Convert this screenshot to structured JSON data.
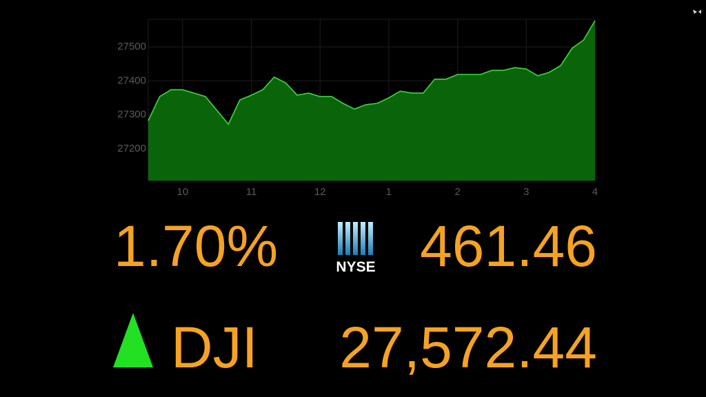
{
  "chart_data": {
    "type": "area",
    "x": [
      9.5,
      9.667,
      9.833,
      10,
      10.167,
      10.333,
      10.5,
      10.667,
      10.833,
      11,
      11.167,
      11.333,
      11.5,
      11.667,
      11.833,
      12,
      12.167,
      12.333,
      12.5,
      12.667,
      12.833,
      13,
      13.167,
      13.333,
      13.5,
      13.667,
      13.833,
      14,
      14.167,
      14.333,
      14.5,
      14.667,
      14.833,
      15,
      15.167,
      15.333,
      15.5,
      15.667,
      15.833,
      16
    ],
    "values": [
      27283,
      27354,
      27374,
      27374,
      27364,
      27354,
      27313,
      27273,
      27344,
      27358,
      27374,
      27411,
      27394,
      27358,
      27364,
      27354,
      27354,
      27334,
      27317,
      27330,
      27334,
      27350,
      27370,
      27364,
      27364,
      27405,
      27405,
      27419,
      27419,
      27419,
      27431,
      27431,
      27439,
      27435,
      27415,
      27425,
      27445,
      27496,
      27520,
      27577
    ],
    "color": "#0b6a0b",
    "line_color": "#3fd83f",
    "xlim": [
      9.5,
      16
    ],
    "xticks": [
      10,
      11,
      12,
      {
        "value": 13,
        "label": "1"
      },
      {
        "value": 14,
        "label": "2"
      },
      {
        "value": 15,
        "label": "3"
      },
      {
        "value": 16,
        "label": "4"
      }
    ],
    "ylim": [
      27107,
      27581
    ],
    "yticks": [
      27200,
      27300,
      27400,
      27500
    ],
    "grid": true
  },
  "ticker": {
    "change_percent": "1.70%",
    "exchange": "NYSE",
    "change_points": "461.46",
    "symbol": "DJI",
    "price": "27,572.44"
  }
}
